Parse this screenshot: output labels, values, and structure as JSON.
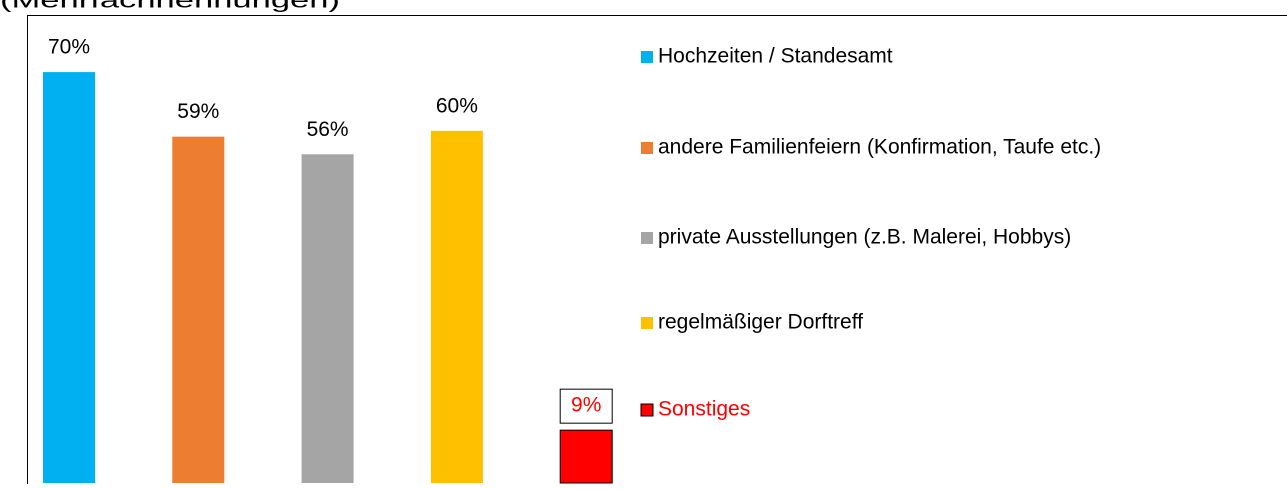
{
  "chart_data": {
    "type": "bar",
    "subtitle": "(Mehrfachnennungen)",
    "categories": [
      "Hochzeiten / Standesamt",
      "andere Familienfeiern (Konfirmation, Taufe etc.)",
      "private Ausstellungen (z.B. Malerei, Hobbys)",
      "regelmäßiger Dorftreff",
      "Sonstiges"
    ],
    "values": [
      70,
      59,
      56,
      60,
      9
    ],
    "value_labels": [
      "70%",
      "59%",
      "56%",
      "60%",
      "9%"
    ],
    "colors": [
      "#00b0f0",
      "#ed7d31",
      "#a5a5a5",
      "#ffc000",
      "#ff0000"
    ],
    "text_colors": [
      "#000000",
      "#000000",
      "#000000",
      "#000000",
      "#ff0000"
    ],
    "ylim": [
      0,
      80
    ],
    "legend": "right"
  }
}
